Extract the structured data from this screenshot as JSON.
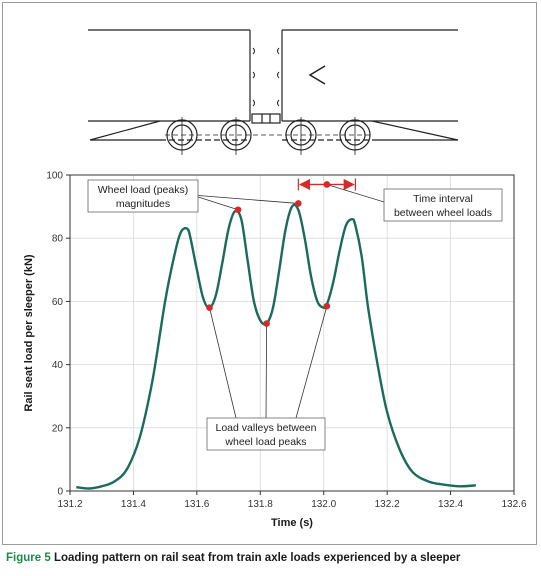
{
  "colors": {
    "curve": "#1b6b5a",
    "marker": "#d42a2a",
    "grid": "#d9d9d9",
    "axis": "#333333",
    "caption_label": "#1e8a4c"
  },
  "caption": {
    "label": "Figure 5",
    "text": "Loading pattern on rail seat from train axle loads experienced by a sleeper"
  },
  "diagram": {
    "description_icon": "train-bogie-schematic"
  },
  "annotations": {
    "peaks_line1": "Wheel load (peaks)",
    "peaks_line2": "magnitudes",
    "interval_line1": "Time interval",
    "interval_line2": "between wheel loads",
    "valleys_line1": "Load valleys between",
    "valleys_line2": "wheel load peaks"
  },
  "chart_data": {
    "type": "line",
    "xlabel": "Time (s)",
    "ylabel": "Rail seat load per sleeper (kN)",
    "xlim": [
      131.2,
      132.6
    ],
    "ylim": [
      0,
      100
    ],
    "xticks": [
      "131.2",
      "131.4",
      "131.6",
      "131.8",
      "132.0",
      "132.2",
      "132.4",
      "132.6"
    ],
    "yticks": [
      "0",
      "20",
      "40",
      "60",
      "80",
      "100"
    ],
    "grid": true,
    "series": [
      {
        "x": [
          131.22,
          131.26,
          131.3,
          131.34,
          131.38,
          131.42,
          131.46,
          131.5,
          131.53,
          131.55,
          131.57,
          131.58,
          131.6,
          131.62,
          131.64,
          131.66,
          131.68,
          131.7,
          131.72,
          131.74,
          131.76,
          131.78,
          131.8,
          131.82,
          131.84,
          131.86,
          131.88,
          131.9,
          131.92,
          131.94,
          131.96,
          131.98,
          132.0,
          132.01,
          132.03,
          132.05,
          132.07,
          132.09,
          132.1,
          132.12,
          132.14,
          132.17,
          132.2,
          132.24,
          132.28,
          132.33,
          132.38,
          132.43,
          132.48
        ],
        "y": [
          1.2,
          0.8,
          1.5,
          3.0,
          7.0,
          17.0,
          35.0,
          60.0,
          75.0,
          82.0,
          83.0,
          80.0,
          70.0,
          61.0,
          58.0,
          62.0,
          72.0,
          83.0,
          88.5,
          86.0,
          73.0,
          60.0,
          54.0,
          53.0,
          58.0,
          70.0,
          83.0,
          90.0,
          89.0,
          80.0,
          68.0,
          60.0,
          58.0,
          59.0,
          66.0,
          76.0,
          84.0,
          86.0,
          84.0,
          74.0,
          58.0,
          40.0,
          25.0,
          13.0,
          6.0,
          3.0,
          2.0,
          1.5,
          1.8
        ]
      }
    ],
    "peak_markers": [
      {
        "x": 131.73,
        "y": 89
      },
      {
        "x": 131.92,
        "y": 91
      }
    ],
    "valley_markers": [
      {
        "x": 131.64,
        "y": 58
      },
      {
        "x": 131.82,
        "y": 53
      },
      {
        "x": 132.01,
        "y": 58.5
      }
    ],
    "interval_marker": {
      "x": 132.01,
      "y": 97
    },
    "interval_span": [
      131.92,
      132.1
    ]
  }
}
